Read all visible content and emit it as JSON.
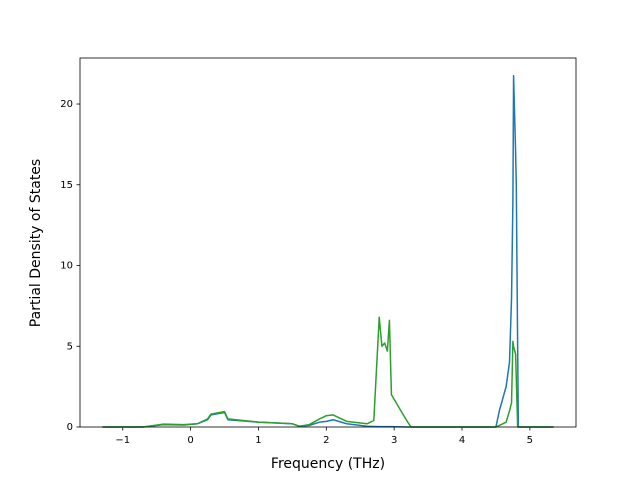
{
  "chart_data": {
    "type": "line",
    "x_label": "Frequency (THz)",
    "y_label": "Partial Density of States",
    "x": [
      -1.3,
      -0.7,
      -0.4,
      -0.1,
      0.1,
      0.25,
      0.3,
      0.5,
      0.55,
      1.0,
      1.5,
      1.6,
      1.75,
      1.9,
      2.0,
      2.1,
      2.3,
      2.6,
      2.7,
      2.78,
      2.82,
      2.86,
      2.9,
      2.93,
      2.96,
      3.1,
      3.2,
      3.25,
      4.5,
      4.55,
      4.65,
      4.7,
      4.73,
      4.75,
      4.76,
      4.79,
      4.8,
      4.82,
      4.83,
      5.35
    ],
    "series": [
      {
        "color": "#1f77b4",
        "values": [
          0,
          0,
          0.15,
          0.12,
          0.2,
          0.45,
          0.75,
          0.9,
          0.45,
          0.3,
          0.2,
          0.05,
          0.1,
          0.3,
          0.35,
          0.45,
          0.2,
          0.05,
          0.03,
          0.02,
          0.02,
          0.02,
          0.02,
          0.02,
          0.02,
          0.01,
          0,
          0,
          0,
          1,
          2.5,
          4,
          8,
          14,
          21.75,
          17,
          15,
          5,
          0,
          0
        ]
      },
      {
        "color": "#2ca02c",
        "values": [
          0,
          0,
          0.18,
          0.15,
          0.2,
          0.5,
          0.8,
          0.95,
          0.5,
          0.3,
          0.2,
          0.05,
          0.15,
          0.5,
          0.7,
          0.75,
          0.35,
          0.2,
          0.4,
          6.8,
          5,
          5.2,
          4.7,
          6.6,
          2,
          1,
          0.3,
          0,
          0,
          0.1,
          0.3,
          1,
          1.5,
          5.3,
          5,
          4.5,
          3,
          0,
          0,
          0
        ]
      }
    ],
    "xlim": [
      -1.63,
      5.68
    ],
    "ylim": [
      0,
      22.85
    ],
    "xticks": [
      {
        "value": -1,
        "label": "−1"
      },
      0,
      1,
      2,
      3,
      4,
      5
    ],
    "yticks": [
      0,
      5,
      10,
      15,
      20
    ],
    "grid": false
  }
}
